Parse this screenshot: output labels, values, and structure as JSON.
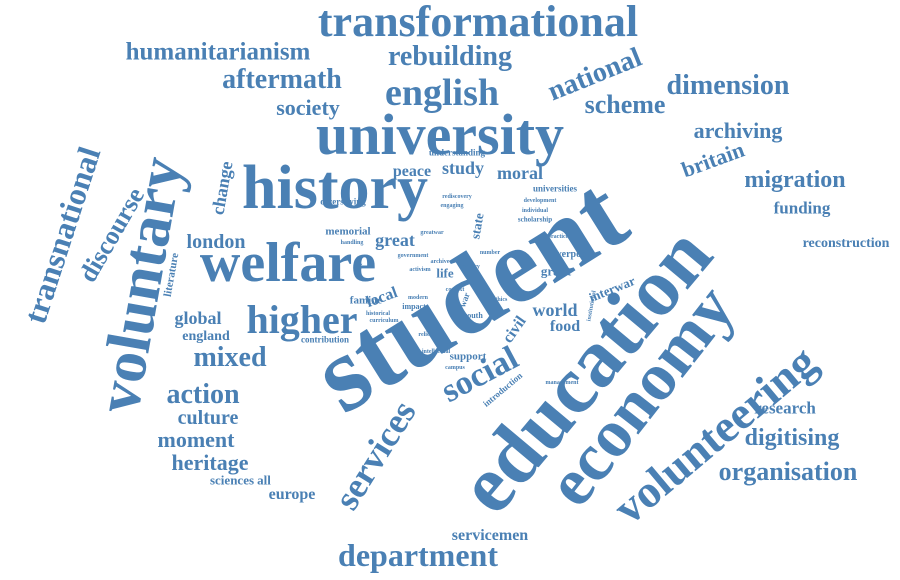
{
  "cloud": {
    "color": "#4a80b4",
    "words": [
      "student",
      "education",
      "economy",
      "university",
      "history",
      "voluntary",
      "welfare",
      "volunteering",
      "transformational",
      "transnational",
      "services",
      "social",
      "english",
      "higher",
      "department",
      "humanitarianism",
      "rebuilding",
      "aftermath",
      "national",
      "dimension",
      "scheme",
      "society",
      "discourse",
      "archiving",
      "britain",
      "migration",
      "organisation",
      "digitising",
      "research",
      "funding",
      "reconstruction",
      "mixed",
      "action",
      "culture",
      "moment",
      "heritage",
      "europe",
      "london",
      "global",
      "england",
      "change",
      "study",
      "peace",
      "moral",
      "great",
      "servicemen",
      "sciences",
      "all",
      "world",
      "food",
      "civil",
      "local",
      "life",
      "grant",
      "interwar",
      "state",
      "famine",
      "support",
      "liverpool",
      "literature",
      "memorial",
      "universities",
      "understanding",
      "diversifying",
      "contribution",
      "introduction",
      "youth",
      "impact",
      "scholarship",
      "development",
      "engaging",
      "rediscovery",
      "individual",
      "practice",
      "institutional",
      "management",
      "handling",
      "curriculum",
      "government",
      "historical",
      "relief",
      "intellectual",
      "greatwar",
      "context",
      "century",
      "number",
      "modern",
      "sector",
      "activism",
      "archive",
      "campus",
      "ethics",
      "value",
      "war"
    ]
  }
}
